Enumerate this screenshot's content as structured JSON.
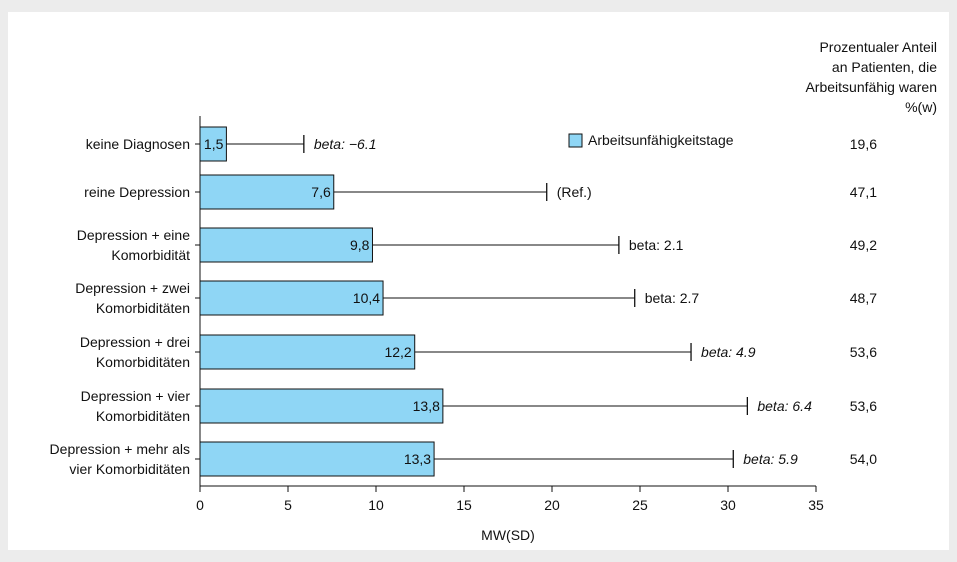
{
  "chart_data": {
    "type": "bar",
    "orientation": "horizontal",
    "categories": [
      "keine Diagnosen",
      "reine Depression",
      "Depression + eine Komorbidität",
      "Depression + zwei Komorbiditäten",
      "Depression + drei Komorbiditäten",
      "Depression + vier Komorbiditäten",
      "Depression +  mehr als vier Komorbiditäten"
    ],
    "category_lines": [
      [
        "keine Diagnosen"
      ],
      [
        "reine Depression"
      ],
      [
        "Depression + eine",
        "Komorbidität"
      ],
      [
        "Depression + zwei",
        "Komorbiditäten"
      ],
      [
        "Depression + drei",
        "Komorbiditäten"
      ],
      [
        "Depression + vier",
        "Komorbiditäten"
      ],
      [
        "Depression +  mehr als",
        "vier Komorbiditäten"
      ]
    ],
    "series": [
      {
        "name": "Arbeitsunfähigkeitstage",
        "color": "#8fd6f5",
        "values": [
          1.5,
          7.6,
          9.8,
          10.4,
          12.2,
          13.8,
          13.3
        ]
      }
    ],
    "value_labels": [
      "1,5",
      "7,6",
      "9,8",
      "10,4",
      "12,2",
      "13,8",
      "13,3"
    ],
    "error_upper": [
      5.9,
      19.7,
      23.8,
      24.7,
      27.9,
      31.1,
      30.3
    ],
    "annotations": [
      {
        "text": "beta: −6.1",
        "italic": true
      },
      {
        "text": "(Ref.)",
        "italic": false
      },
      {
        "text": "beta: 2.1",
        "italic": false
      },
      {
        "text": "beta: 2.7",
        "italic": false
      },
      {
        "text": "beta: 4.9",
        "italic": true
      },
      {
        "text": "beta: 6.4",
        "italic": true
      },
      {
        "text": "beta: 5.9",
        "italic": true
      }
    ],
    "xlabel": "MW(SD)",
    "xlim": [
      0,
      35
    ],
    "xticks": [
      0,
      5,
      10,
      15,
      20,
      25,
      30,
      35
    ],
    "grid": false,
    "legend": {
      "position": "top-center"
    },
    "right_column": {
      "header_lines": [
        "Prozentualer Anteil",
        "an Patienten, die",
        "Arbeitsunfähig waren",
        "%(w)"
      ],
      "values": [
        "19,6",
        "47,1",
        "49,2",
        "48,7",
        "53,6",
        "53,6",
        "54,0"
      ]
    }
  }
}
